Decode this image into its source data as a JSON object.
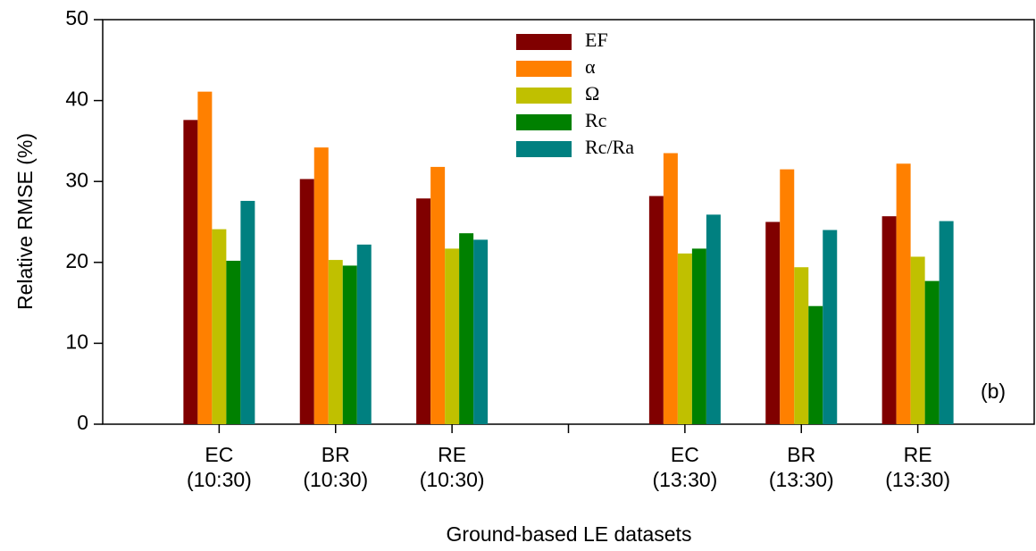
{
  "chart_data": {
    "type": "bar",
    "x_label": "Ground-based LE datasets",
    "y_label": "Relative RMSE (%)",
    "annotation": "(b)",
    "categories": [
      "EC\n(10:30)",
      "BR\n(10:30)",
      "RE\n(10:30)",
      null,
      "EC\n(13:30)",
      "BR\n(13:30)",
      "RE\n(13:30)"
    ],
    "series": [
      {
        "name": "EF",
        "color": "#800000",
        "values": [
          37.6,
          30.3,
          27.9,
          null,
          28.2,
          25.0,
          25.7
        ]
      },
      {
        "name": "α",
        "color": "#ff8000",
        "values": [
          41.1,
          34.2,
          31.8,
          null,
          33.5,
          31.5,
          32.2
        ]
      },
      {
        "name": "Ω",
        "color": "#c0c000",
        "values": [
          24.1,
          20.3,
          21.7,
          null,
          21.1,
          19.4,
          20.7
        ]
      },
      {
        "name": "Rc",
        "color": "#008000",
        "values": [
          20.2,
          19.6,
          23.6,
          null,
          21.7,
          14.6,
          17.7
        ]
      },
      {
        "name": "Rc/Ra",
        "color": "#008080",
        "values": [
          27.6,
          22.2,
          22.8,
          null,
          25.9,
          24.0,
          25.1
        ]
      }
    ],
    "ylim": [
      0,
      50
    ],
    "yticks": [
      0,
      10,
      20,
      30,
      40,
      50
    ],
    "legend": "upper center"
  }
}
